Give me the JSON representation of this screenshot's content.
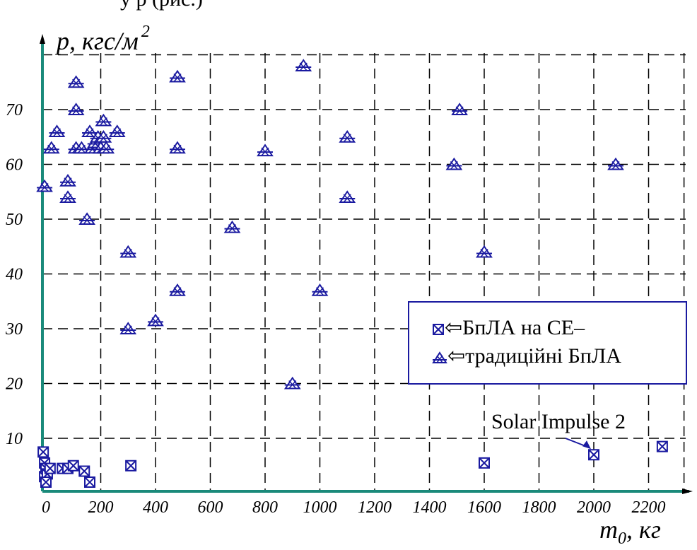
{
  "caption_fragment": "у р                                               (рис.)",
  "chart_data": {
    "type": "scatter",
    "ylabel_main": "p, кгс/м",
    "ylabel_sup": "2",
    "xlabel_main": "m",
    "xlabel_sub": "0",
    "xlabel_unit": ", кг",
    "xlim": [
      0,
      2350
    ],
    "ylim": [
      0,
      82
    ],
    "x_ticks": [
      "0",
      "200",
      "400",
      "600",
      "800",
      "1000",
      "1200",
      "1400",
      "1600",
      "1800",
      "2000",
      "2200"
    ],
    "x_tick_values": [
      0,
      200,
      400,
      600,
      800,
      1000,
      1200,
      1400,
      1600,
      1800,
      2000,
      2200
    ],
    "y_ticks": [
      "10",
      "20",
      "30",
      "40",
      "50",
      "60",
      "70"
    ],
    "y_tick_values": [
      10,
      20,
      30,
      40,
      50,
      60,
      70
    ],
    "grid": true,
    "legend_position": "right",
    "series": [
      {
        "name": "БпЛА на СЕ",
        "marker": "boxed-x",
        "color": "#1a1aa0",
        "points": [
          [
            -10,
            7.5
          ],
          [
            -5,
            5.5
          ],
          [
            0,
            4.5
          ],
          [
            -5,
            3
          ],
          [
            5,
            3.5
          ],
          [
            0,
            2
          ],
          [
            15,
            4.5
          ],
          [
            60,
            4.5
          ],
          [
            80,
            4.5
          ],
          [
            100,
            5
          ],
          [
            140,
            4
          ],
          [
            160,
            2
          ],
          [
            310,
            5
          ],
          [
            1600,
            5.5
          ],
          [
            2000,
            7
          ],
          [
            2250,
            8.5
          ]
        ]
      },
      {
        "name": "традиційні БпЛА",
        "marker": "triangle",
        "color": "#1a1aa0",
        "points": [
          [
            -5,
            56
          ],
          [
            20,
            63
          ],
          [
            40,
            66
          ],
          [
            80,
            57
          ],
          [
            80,
            54
          ],
          [
            110,
            75
          ],
          [
            110,
            70
          ],
          [
            110,
            63
          ],
          [
            130,
            63
          ],
          [
            150,
            50
          ],
          [
            160,
            66
          ],
          [
            170,
            63
          ],
          [
            180,
            64
          ],
          [
            190,
            65
          ],
          [
            200,
            63
          ],
          [
            210,
            68
          ],
          [
            210,
            65
          ],
          [
            220,
            63
          ],
          [
            260,
            66
          ],
          [
            300,
            44
          ],
          [
            300,
            30
          ],
          [
            400,
            31.5
          ],
          [
            480,
            76
          ],
          [
            480,
            63
          ],
          [
            480,
            37
          ],
          [
            680,
            48.5
          ],
          [
            800,
            62.5
          ],
          [
            900,
            20
          ],
          [
            940,
            78
          ],
          [
            1000,
            37
          ],
          [
            1100,
            65
          ],
          [
            1100,
            54
          ],
          [
            1490,
            60
          ],
          [
            1510,
            70
          ],
          [
            1600,
            44
          ],
          [
            2080,
            60
          ]
        ]
      }
    ],
    "annotation": "Solar Impulse 2"
  },
  "legend": {
    "item1": "⇦БпЛА на СЕ–",
    "item2": "⇦традиційні БпЛА"
  },
  "colors": {
    "marker": "#1a1aa0",
    "axis": "#1a8a7a",
    "grid": "#000000",
    "legend_border": "#1a1aa0"
  }
}
